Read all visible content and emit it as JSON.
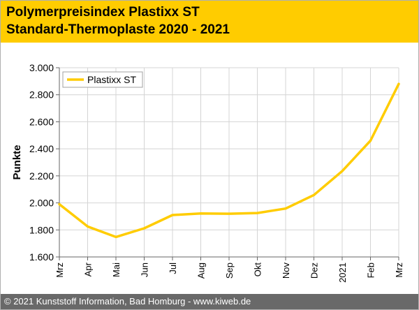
{
  "header": {
    "title_line1": "Polymerpreisindex Plastixx ST",
    "title_line2": "Standard-Thermoplaste 2020 - 2021",
    "background_color": "#ffcc00"
  },
  "footer": {
    "text": "© 2021 Kunststoff Information, Bad Homburg - www.kiweb.de",
    "background_color": "#696969"
  },
  "chart_data": {
    "type": "line",
    "title": "Polymerpreisindex Plastixx ST Standard-Thermoplaste 2020 - 2021",
    "xlabel": "",
    "ylabel": "Punkte",
    "categories": [
      "Mrz",
      "Apr",
      "Mai",
      "Jun",
      "Jul",
      "Aug",
      "Sep",
      "Okt",
      "Nov",
      "Dez",
      "2021",
      "Feb",
      "Mrz"
    ],
    "series": [
      {
        "name": "Plastixx ST",
        "color": "#ffcc00",
        "values": [
          1990,
          1825,
          1748,
          1812,
          1910,
          1922,
          1920,
          1925,
          1958,
          2058,
          2235,
          2460,
          2880
        ]
      }
    ],
    "ylim": [
      1600,
      3000
    ],
    "yticks": [
      1600,
      1800,
      2000,
      2200,
      2400,
      2600,
      2800,
      3000
    ],
    "ytick_labels": [
      "1.600",
      "1.800",
      "2.000",
      "2.200",
      "2.400",
      "2.600",
      "2.800",
      "3.000"
    ],
    "grid": true,
    "legend_position": "top-left"
  }
}
